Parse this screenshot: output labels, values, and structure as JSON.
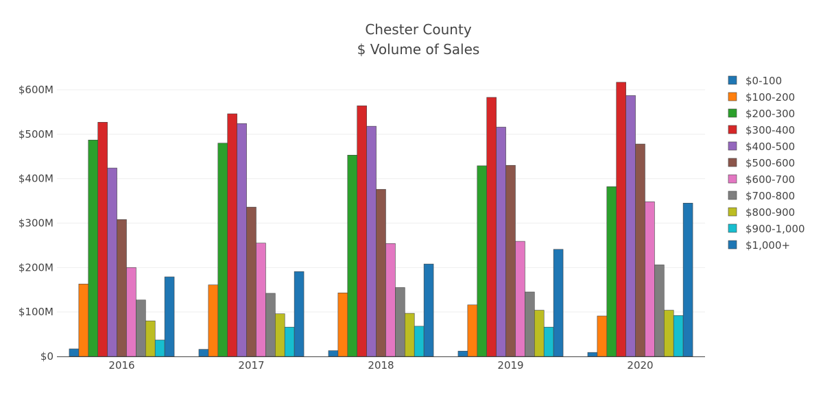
{
  "chart_data": {
    "type": "bar",
    "title": [
      "Chester County",
      "$ Volume of Sales"
    ],
    "xlabel": "",
    "ylabel": "",
    "categories": [
      "2016",
      "2017",
      "2018",
      "2019",
      "2020"
    ],
    "ylim": [
      0,
      640
    ],
    "yticks": [
      0,
      100,
      200,
      300,
      400,
      500,
      600
    ],
    "ytick_labels": [
      "$0",
      "$100M",
      "$200M",
      "$300M",
      "$400M",
      "$500M",
      "$600M"
    ],
    "units": "millions USD",
    "grid": true,
    "legend_position": "right",
    "series": [
      {
        "name": "$0-100",
        "color": "#1f77b4",
        "values": [
          17,
          16,
          13,
          12,
          9
        ]
      },
      {
        "name": "$100-200",
        "color": "#ff7f0e",
        "values": [
          163,
          161,
          143,
          116,
          91
        ]
      },
      {
        "name": "$200-300",
        "color": "#2ca02c",
        "values": [
          487,
          480,
          453,
          429,
          382
        ]
      },
      {
        "name": "$300-400",
        "color": "#d62728",
        "values": [
          527,
          546,
          564,
          583,
          617
        ]
      },
      {
        "name": "$400-500",
        "color": "#9467bd",
        "values": [
          424,
          524,
          518,
          516,
          587
        ]
      },
      {
        "name": "$500-600",
        "color": "#8c564b",
        "values": [
          308,
          336,
          376,
          430,
          478
        ]
      },
      {
        "name": "$600-700",
        "color": "#e377c2",
        "values": [
          200,
          255,
          254,
          259,
          348
        ]
      },
      {
        "name": "$700-800",
        "color": "#7f7f7f",
        "values": [
          127,
          142,
          155,
          145,
          206
        ]
      },
      {
        "name": "$800-900",
        "color": "#bcbd22",
        "values": [
          80,
          96,
          97,
          104,
          104
        ]
      },
      {
        "name": "$900-1,000",
        "color": "#17becf",
        "values": [
          37,
          66,
          68,
          66,
          92
        ]
      },
      {
        "name": "$1,000+",
        "color": "#1f77b4",
        "values": [
          179,
          191,
          208,
          241,
          345
        ]
      }
    ]
  }
}
